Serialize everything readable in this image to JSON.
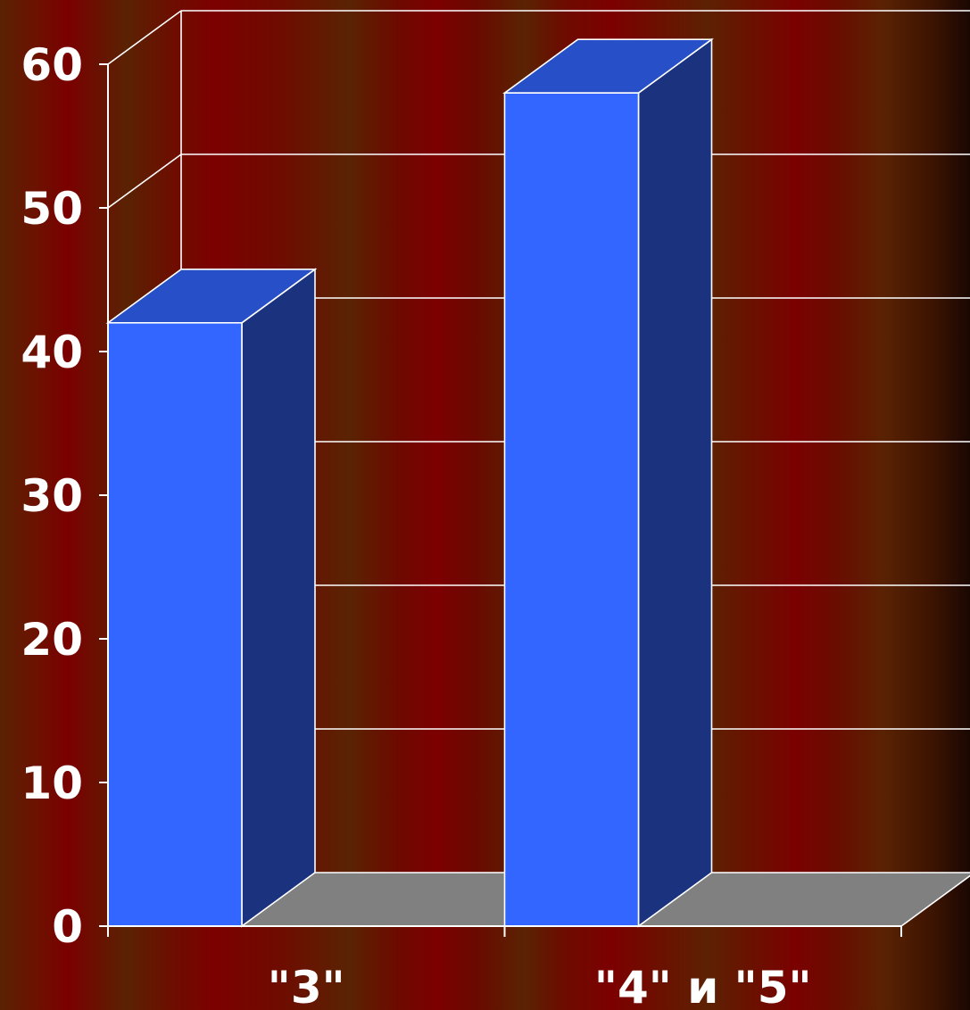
{
  "chart_data": {
    "type": "bar",
    "three_d": true,
    "categories": [
      "\"3\"",
      "\"4\" и \"5\""
    ],
    "values": [
      42,
      58
    ],
    "ylim": [
      0,
      60
    ],
    "yticks": [
      0,
      10,
      20,
      30,
      40,
      50,
      60
    ],
    "grid": true,
    "legend": "none",
    "title": "",
    "xlabel": "",
    "ylabel": "",
    "colors": {
      "bar_front": "#3366ff",
      "bar_side": "#1b337f",
      "bar_top": "#2750c8",
      "floor": "#808080",
      "grid": "#ffffff",
      "text": "#ffffff"
    }
  }
}
